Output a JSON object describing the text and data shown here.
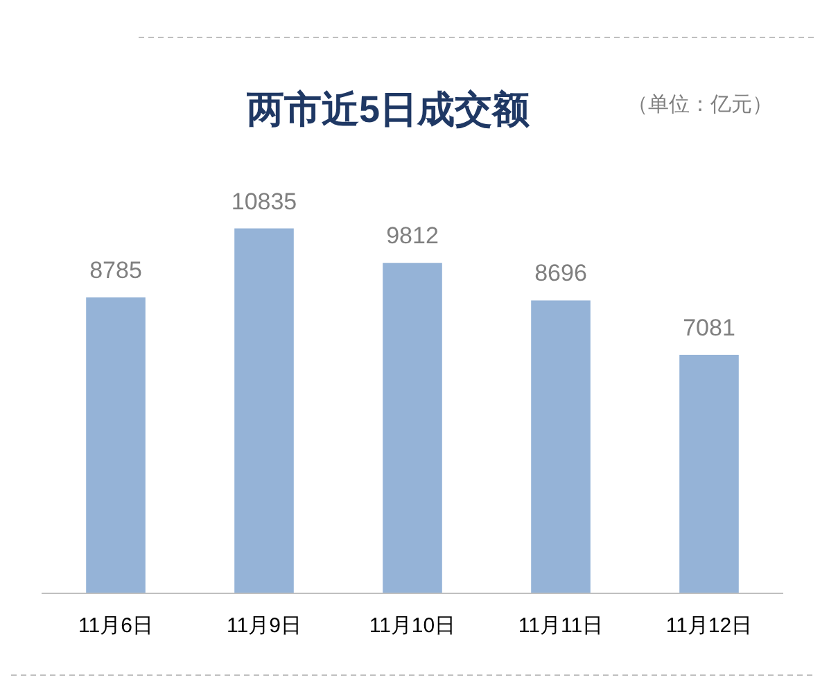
{
  "chart_data": {
    "type": "bar",
    "title": "两市近5日成交额",
    "annotations": [
      "（单位：亿元）"
    ],
    "categories": [
      "11月6日",
      "11月9日",
      "11月10日",
      "11月11日",
      "11月12日"
    ],
    "values": [
      8785,
      10835,
      9812,
      8696,
      7081
    ],
    "color": "#95b3d7",
    "data_labels": true
  }
}
